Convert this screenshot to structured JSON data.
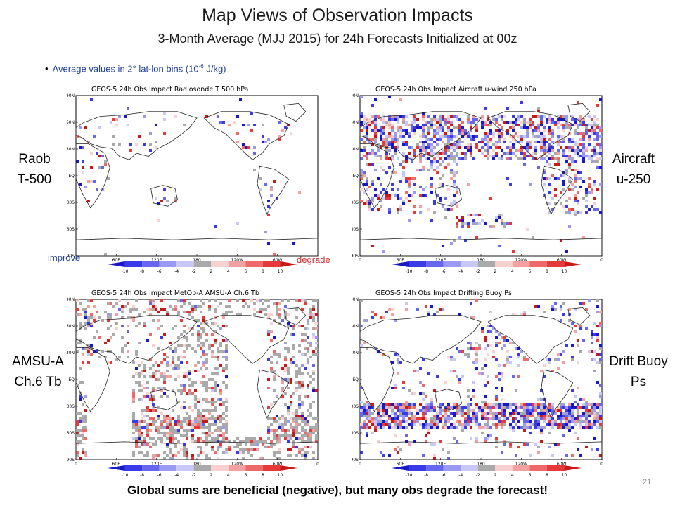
{
  "title": "Map Views of Observation Impacts",
  "subtitle": "3-Month Average (MJJ 2015) for 24h Forecasts Initialized at 00z",
  "bullet": {
    "text_prefix": "Average values in 2° lat-lon bins (10",
    "exponent": "-6",
    "text_suffix": " J/kg)"
  },
  "legend": {
    "improve_label": "improve",
    "degrade_label": "degrade",
    "colorbar_ticks": [
      "-10",
      "-8",
      "-6",
      "-4",
      "-2",
      "2",
      "4",
      "6",
      "8",
      "10"
    ],
    "colorbar_colors": [
      "#1818c8",
      "#3a3ae6",
      "#6767ee",
      "#9a9af2",
      "#c8c8f6",
      "#aaaaaa",
      "#f8d0d0",
      "#f2a0a0",
      "#ee6a6a",
      "#e63a3a",
      "#c81818"
    ]
  },
  "axes": {
    "lat_ticks": [
      "90N",
      "60N",
      "30N",
      "EQ",
      "30S",
      "60S",
      "90S"
    ],
    "lon_ticks": [
      "0",
      "60E",
      "120E",
      "180",
      "120W",
      "60W",
      "0"
    ]
  },
  "panels": [
    {
      "id": "raob",
      "side_label_lines": [
        "Raob",
        "T-500"
      ],
      "map_title": "GEOS-5  24h Obs Impact     Radiosonde T 500 hPa"
    },
    {
      "id": "aircraft",
      "side_label_lines": [
        "Aircraft",
        "u-250"
      ],
      "map_title": "GEOS-5  24h Obs Impact     Aircraft u-wind 250 hPa"
    },
    {
      "id": "amsua",
      "side_label_lines": [
        "AMSU-A",
        "Ch.6 Tb"
      ],
      "map_title": "GEOS-5  24h Obs Impact     MetOp-A  AMSU-A  Ch.6 Tb"
    },
    {
      "id": "buoy",
      "side_label_lines": [
        "Drift Buoy",
        "Ps"
      ],
      "map_title": "GEOS-5  24h Obs Impact     Drifting Buoy Ps"
    }
  ],
  "footer": {
    "text_before": "Global sums are beneficial (negative), but many obs ",
    "underlined": "degrade",
    "text_after": " the forecast!"
  },
  "slide_number": "21"
}
